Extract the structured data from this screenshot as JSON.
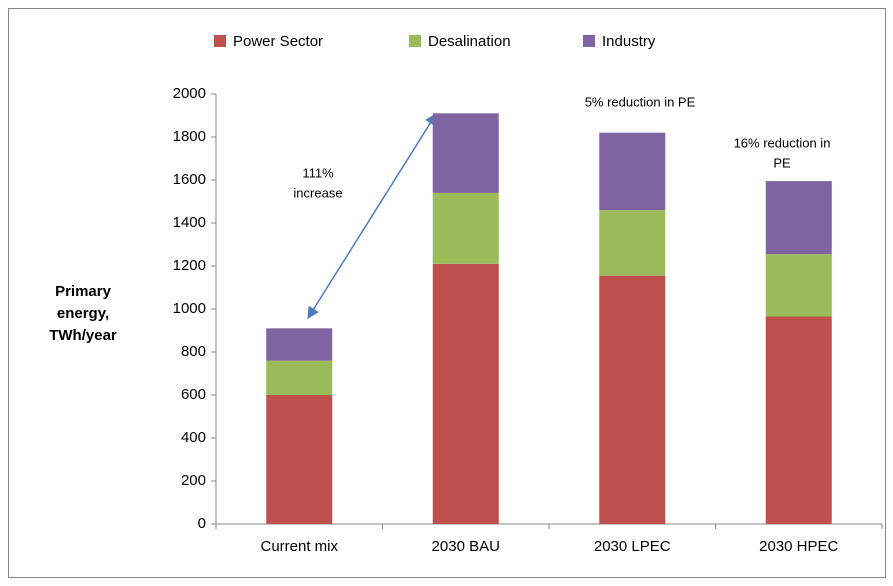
{
  "chart_data": {
    "type": "stacked_bar",
    "categories": [
      "Current mix",
      "2030 BAU",
      "2030 LPEC",
      "2030 HPEC"
    ],
    "series": [
      {
        "name": "Power Sector",
        "color": "#c0504d",
        "values": [
          600,
          1210,
          1155,
          965
        ]
      },
      {
        "name": "Desalination",
        "color": "#9bbb59",
        "values": [
          160,
          330,
          305,
          290
        ]
      },
      {
        "name": "Industry",
        "color": "#8064a2",
        "values": [
          150,
          370,
          360,
          340
        ]
      }
    ],
    "ylabel": [
      "Primary",
      "energy,",
      "TWh/year"
    ],
    "ylim": [
      0,
      2000
    ],
    "yticks": [
      0,
      200,
      400,
      600,
      800,
      1000,
      1200,
      1400,
      1600,
      1800,
      2000
    ],
    "legend": "top",
    "grid": false,
    "annotations": [
      [
        "111%",
        "increase"
      ],
      [
        "5% reduction in PE"
      ],
      [
        "16%  reduction in",
        "PE"
      ]
    ]
  }
}
